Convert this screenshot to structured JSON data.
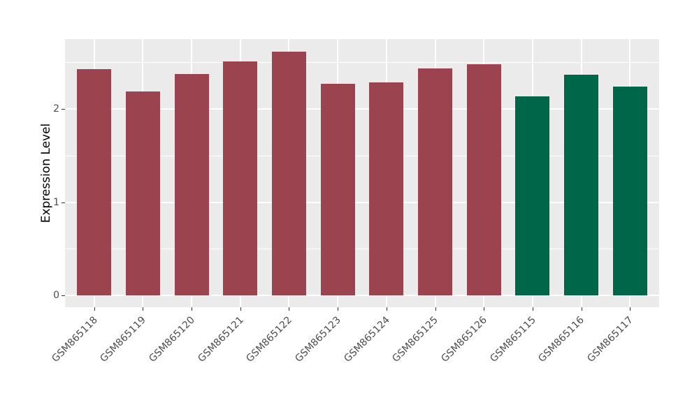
{
  "chart_data": {
    "type": "bar",
    "title": "",
    "xlabel": "",
    "ylabel": "Expression Level",
    "categories": [
      "GSM865118",
      "GSM865119",
      "GSM865120",
      "GSM865121",
      "GSM865122",
      "GSM865123",
      "GSM865124",
      "GSM865125",
      "GSM865126",
      "GSM865115",
      "GSM865116",
      "GSM865117"
    ],
    "values": [
      2.43,
      2.19,
      2.38,
      2.51,
      2.62,
      2.27,
      2.29,
      2.44,
      2.48,
      2.14,
      2.37,
      2.24
    ],
    "bar_colors": [
      "#9b4450",
      "#9b4450",
      "#9b4450",
      "#9b4450",
      "#9b4450",
      "#9b4450",
      "#9b4450",
      "#9b4450",
      "#9b4450",
      "#006649",
      "#006649",
      "#006649"
    ],
    "color_groups": {
      "red_bars": {
        "color": "#9b4450",
        "samples": [
          "GSM865118",
          "GSM865119",
          "GSM865120",
          "GSM865121",
          "GSM865122",
          "GSM865123",
          "GSM865124",
          "GSM865125",
          "GSM865126"
        ]
      },
      "green_bars": {
        "color": "#006649",
        "samples": [
          "GSM865115",
          "GSM865116",
          "GSM865117"
        ]
      }
    },
    "y_ticks": [
      0,
      1,
      2
    ],
    "y_tick_labels": [
      "0",
      "1",
      "2"
    ],
    "y_minor_ticks": [
      0.5,
      1.5,
      2.5
    ],
    "ylim": [
      -0.13,
      2.75
    ],
    "bar_width_fraction": 0.7,
    "x_tick_rotation_deg": 45,
    "grid": true,
    "legend": false,
    "panel_background": "#ebebeb",
    "grid_color": "#ffffff",
    "axis_text_color": "#4d4d4d",
    "tick_mark_color": "#333333",
    "figure_background": "#ffffff"
  }
}
